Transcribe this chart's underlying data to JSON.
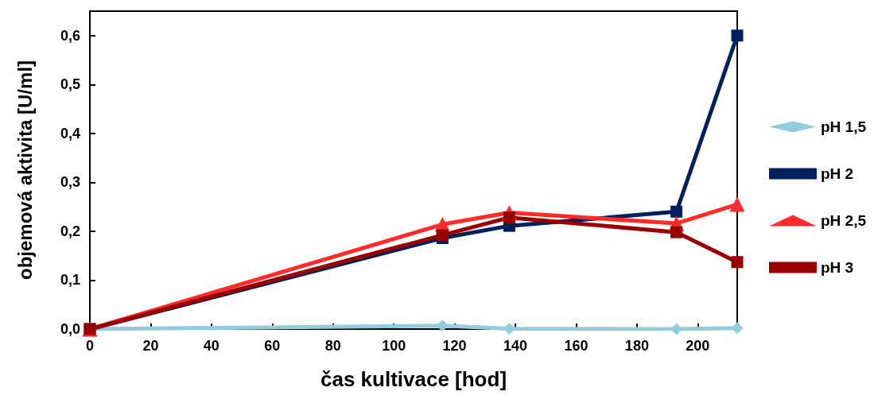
{
  "chart_data": {
    "type": "line",
    "xlabel": "čas kultivace [hod]",
    "ylabel": "objemová aktivita [U/ml]",
    "x": [
      0,
      116,
      138,
      193,
      213
    ],
    "xlim": [
      0,
      213
    ],
    "xticks": [
      0,
      20,
      40,
      60,
      80,
      100,
      120,
      140,
      160,
      180,
      200
    ],
    "ylim": [
      0,
      0.65
    ],
    "yticks": [
      {
        "value": 0,
        "label": "0,0"
      },
      {
        "value": 0.1,
        "label": "0,1"
      },
      {
        "value": 0.2,
        "label": "0,2"
      },
      {
        "value": 0.3,
        "label": "0,3"
      },
      {
        "value": 0.4,
        "label": "0,4"
      },
      {
        "value": 0.5,
        "label": "0,5"
      },
      {
        "value": 0.6,
        "label": "0,6"
      }
    ],
    "grid": false,
    "legend": "right",
    "line_style": "solid",
    "series": [
      {
        "name": "pH 1,5",
        "color": "#92cddc",
        "marker": "diamond",
        "values": [
          0,
          0.007,
          0.001,
          0,
          0.002
        ]
      },
      {
        "name": "pH 2",
        "color": "#002060",
        "marker": "square",
        "values": [
          0,
          0.186,
          0.211,
          0.24,
          0.6
        ]
      },
      {
        "name": "pH 2,5",
        "color": "#ff2b2b",
        "marker": "triangle",
        "values": [
          0,
          0.214,
          0.238,
          0.216,
          0.255
        ]
      },
      {
        "name": "pH 3",
        "color": "#990000",
        "marker": "square",
        "values": [
          0,
          0.192,
          0.228,
          0.198,
          0.137
        ]
      }
    ]
  }
}
